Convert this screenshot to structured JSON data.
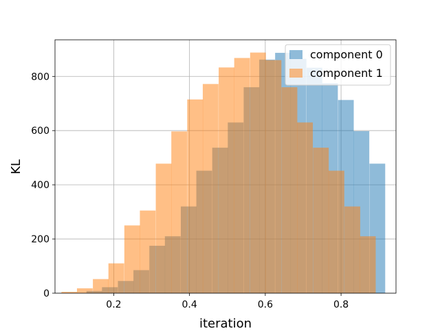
{
  "chart_data": {
    "type": "bar",
    "title": "",
    "xlabel": "iteration",
    "ylabel": "KL",
    "xlim": [
      0.045,
      0.945
    ],
    "ylim": [
      0,
      935
    ],
    "grid": true,
    "legend_position": "top-right",
    "bin_width": 0.0415,
    "xticks": [
      0.2,
      0.4,
      0.6,
      0.8
    ],
    "yticks": [
      0,
      200,
      400,
      600,
      800
    ],
    "series": [
      {
        "name": "component 0",
        "color": "#1f77b4",
        "bin_starts": [
          0.128,
          0.169,
          0.211,
          0.252,
          0.294,
          0.335,
          0.377,
          0.418,
          0.46,
          0.501,
          0.543,
          0.584,
          0.626,
          0.667,
          0.709,
          0.75,
          0.792,
          0.833,
          0.875
        ],
        "values": [
          8,
          22,
          45,
          85,
          175,
          210,
          320,
          452,
          537,
          630,
          760,
          862,
          887,
          865,
          832,
          775,
          713,
          598,
          478
        ]
      },
      {
        "name": "component 1",
        "color": "#ff7f0e",
        "bin_starts": [
          0.062,
          0.103,
          0.145,
          0.186,
          0.228,
          0.269,
          0.311,
          0.352,
          0.394,
          0.435,
          0.477,
          0.518,
          0.56,
          0.601,
          0.643,
          0.684,
          0.726,
          0.767,
          0.809,
          0.85
        ],
        "values": [
          5,
          18,
          52,
          110,
          250,
          305,
          478,
          597,
          715,
          772,
          833,
          868,
          888,
          860,
          760,
          630,
          537,
          452,
          320,
          210
        ]
      }
    ]
  }
}
